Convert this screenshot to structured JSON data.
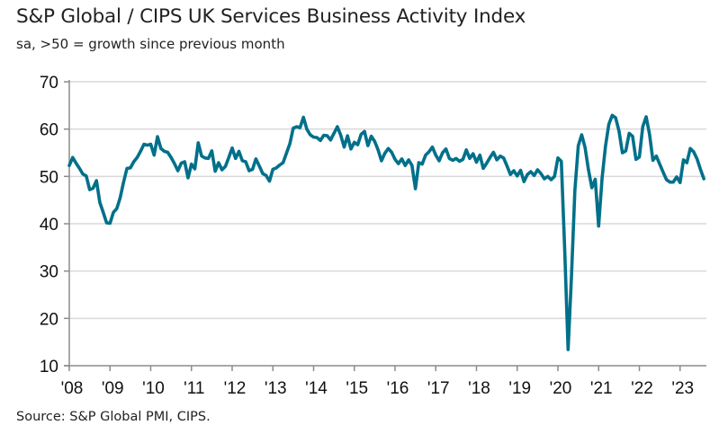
{
  "header": {
    "title": "S&P Global / CIPS UK Services Business Activity Index",
    "subtitle": "sa, >50 = growth since previous month"
  },
  "footer": {
    "source": "Source: S&P Global PMI, CIPS."
  },
  "colors": {
    "line": "#00708a",
    "grid": "#d9d9d9",
    "axis": "#8c8c8c"
  },
  "chart_data": {
    "type": "line",
    "title": "S&P Global / CIPS UK Services Business Activity Index",
    "subtitle": "sa, >50 = growth since previous month",
    "xlabel": "",
    "ylabel": "",
    "ylim": [
      10,
      70
    ],
    "yticks": [
      70,
      60,
      50,
      40,
      30,
      20,
      10
    ],
    "ytick_labels": [
      "70",
      "60",
      "50",
      "40",
      "30",
      "20",
      "10"
    ],
    "xticks": [
      "'08",
      "'09",
      "'10",
      "'11",
      "'12",
      "'13",
      "'14",
      "'15",
      "'16",
      "'17",
      "'18",
      "'19",
      "'20",
      "'21",
      "'22",
      "'23"
    ],
    "x_start": "2008-01",
    "x_end": "2023-08",
    "frequency": "monthly",
    "grid": true,
    "legend": "none",
    "series": [
      {
        "name": "UK Services Business Activity Index",
        "values": [
          52.3,
          54.0,
          52.8,
          51.7,
          50.5,
          50.1,
          47.2,
          47.5,
          49.1,
          44.5,
          42.4,
          40.2,
          40.1,
          42.4,
          43.2,
          45.5,
          48.8,
          51.7,
          51.8,
          53.1,
          54.0,
          55.3,
          56.8,
          56.6,
          56.8,
          54.5,
          58.4,
          55.9,
          55.3,
          55.1,
          54.0,
          52.7,
          51.2,
          52.8,
          53.1,
          49.7,
          52.6,
          51.6,
          57.1,
          54.3,
          53.9,
          53.8,
          55.4,
          51.1,
          52.9,
          51.4,
          52.1,
          54.0,
          56.0,
          53.8,
          55.3,
          53.3,
          53.1,
          51.2,
          51.5,
          53.7,
          52.2,
          50.6,
          50.2,
          49.0,
          51.5,
          51.8,
          52.4,
          52.9,
          54.9,
          56.9,
          60.2,
          60.5,
          60.3,
          62.5,
          60.0,
          58.8,
          58.3,
          58.2,
          57.6,
          58.7,
          58.6,
          57.7,
          59.1,
          60.5,
          58.7,
          56.2,
          58.6,
          55.8,
          57.2,
          56.7,
          58.9,
          59.5,
          56.5,
          58.5,
          57.4,
          55.6,
          53.3,
          54.9,
          55.9,
          55.1,
          53.6,
          52.7,
          53.7,
          52.3,
          53.5,
          52.3,
          47.4,
          52.9,
          52.6,
          54.5,
          55.2,
          56.2,
          54.5,
          53.3,
          55.0,
          55.8,
          53.8,
          53.4,
          53.8,
          53.2,
          53.6,
          55.6,
          53.8,
          54.8,
          53.0,
          54.5,
          51.7,
          52.8,
          54.0,
          55.1,
          53.5,
          54.3,
          53.9,
          52.2,
          50.4,
          51.2,
          50.1,
          51.3,
          48.9,
          50.4,
          51.0,
          50.2,
          51.4,
          50.6,
          49.5,
          50.0,
          49.3,
          50.0,
          53.9,
          53.2,
          34.5,
          13.4,
          29.0,
          47.1,
          56.5,
          58.8,
          56.1,
          51.4,
          47.6,
          49.4,
          39.5,
          49.5,
          56.3,
          61.0,
          62.9,
          62.4,
          59.6,
          55.0,
          55.4,
          59.1,
          58.5,
          53.6,
          54.1,
          60.5,
          62.6,
          58.9,
          53.4,
          54.3,
          52.6,
          50.9,
          49.3,
          48.8,
          48.8,
          49.9,
          48.7,
          53.5,
          52.9,
          55.9,
          55.2,
          53.7,
          51.5,
          49.5
        ]
      }
    ]
  }
}
